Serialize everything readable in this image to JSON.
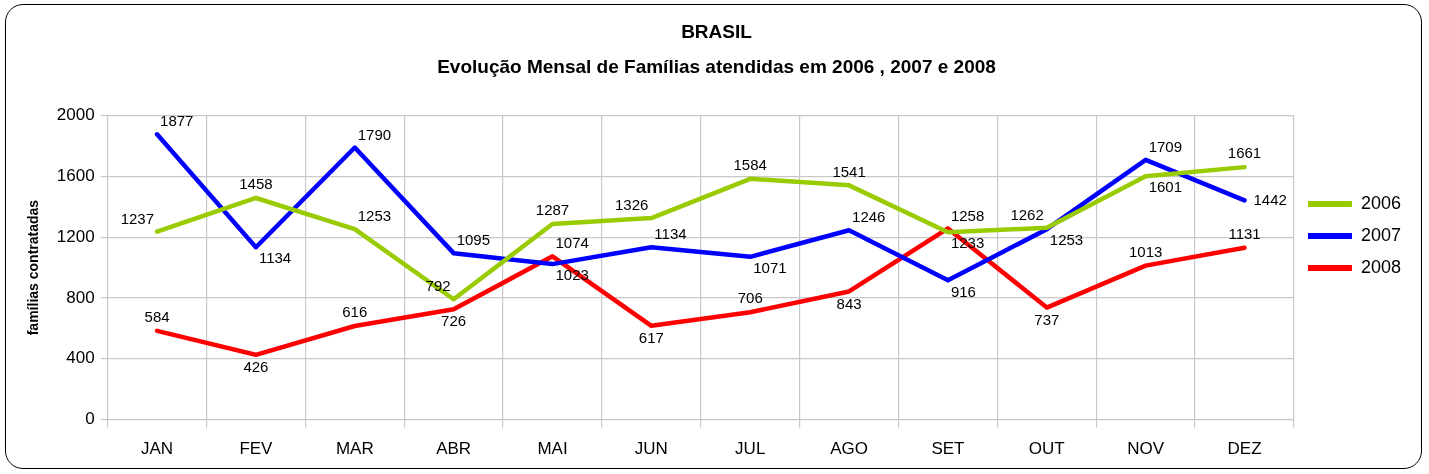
{
  "chart_data": {
    "type": "line",
    "title": "BRASIL",
    "subtitle": "Evolução Mensal de Famílias atendidas em 2006 , 2007 e 2008",
    "ylabel": "famílias contratadas",
    "categories": [
      "JAN",
      "FEV",
      "MAR",
      "ABR",
      "MAI",
      "JUN",
      "JUL",
      "AGO",
      "SET",
      "OUT",
      "NOV",
      "DEZ"
    ],
    "series": [
      {
        "name": "2006",
        "color": "#99cc00",
        "values": [
          1237,
          1458,
          1253,
          792,
          1287,
          1326,
          1584,
          1541,
          1233,
          1262,
          1601,
          1661
        ]
      },
      {
        "name": "2007",
        "color": "#0000ff",
        "values": [
          1877,
          1134,
          1790,
          1095,
          1023,
          1134,
          1071,
          1246,
          916,
          1253,
          1709,
          1442
        ]
      },
      {
        "name": "2008",
        "color": "#ff0000",
        "values": [
          584,
          426,
          616,
          726,
          1074,
          617,
          706,
          843,
          1258,
          737,
          1013,
          1131
        ]
      }
    ],
    "ylim": [
      0,
      2000
    ],
    "yticks": [
      0,
      400,
      800,
      1200,
      1600,
      2000
    ],
    "grid": true,
    "legend": "right",
    "data_labels": true,
    "marker": "none",
    "line_style": "solid"
  }
}
